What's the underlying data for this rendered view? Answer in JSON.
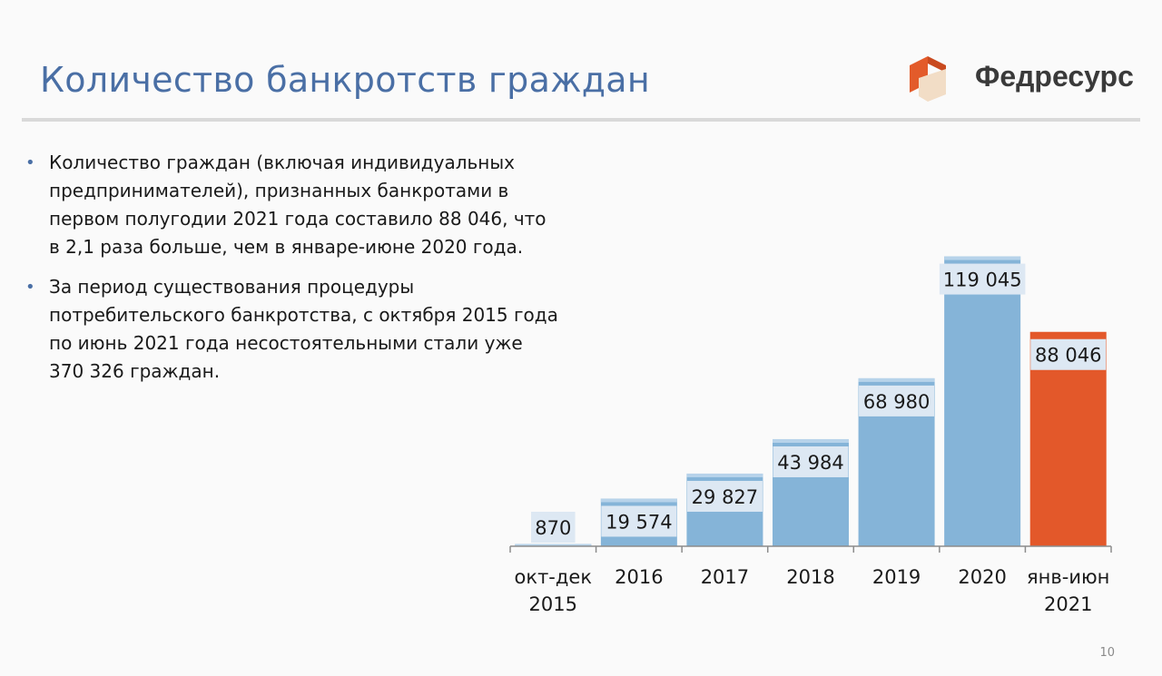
{
  "title": "Количество банкротств граждан",
  "logo": {
    "text": "Федресурс",
    "colors": [
      "#e35b2a",
      "#c94a1f",
      "#f2ddc6"
    ]
  },
  "bullets": [
    "Количество граждан (включая индивидуальных предпринимателей), признанных банкротами в первом полугодии 2021 года составило 88 046, что в 2,1 раза больше, чем в январе-июне 2020 года.",
    "За период существования процедуры потребительского банкротства, с октября 2015 года по июнь 2021 года несостоятельными стали уже 370 326 граждан."
  ],
  "page_number": "10",
  "colors": {
    "accent": "#4a6fa5",
    "bar": "#85b4d8",
    "bar_cap": "#b7d3ea",
    "highlight": "#e3582a",
    "label_bg": "#dde8f3"
  },
  "chart_data": {
    "type": "bar",
    "categories": [
      [
        "окт-дек",
        "2015"
      ],
      [
        "2016"
      ],
      [
        "2017"
      ],
      [
        "2018"
      ],
      [
        "2019"
      ],
      [
        "2020"
      ],
      [
        "янв-июн",
        "2021"
      ]
    ],
    "values": [
      870,
      19574,
      29827,
      43984,
      68980,
      119045,
      88046
    ],
    "labels": [
      "870",
      "19 574",
      "29 827",
      "43 984",
      "68 980",
      "119 045",
      "88 046"
    ],
    "highlight_index": 6,
    "ylim": [
      0,
      120000
    ],
    "grid": false,
    "legend": "none"
  }
}
